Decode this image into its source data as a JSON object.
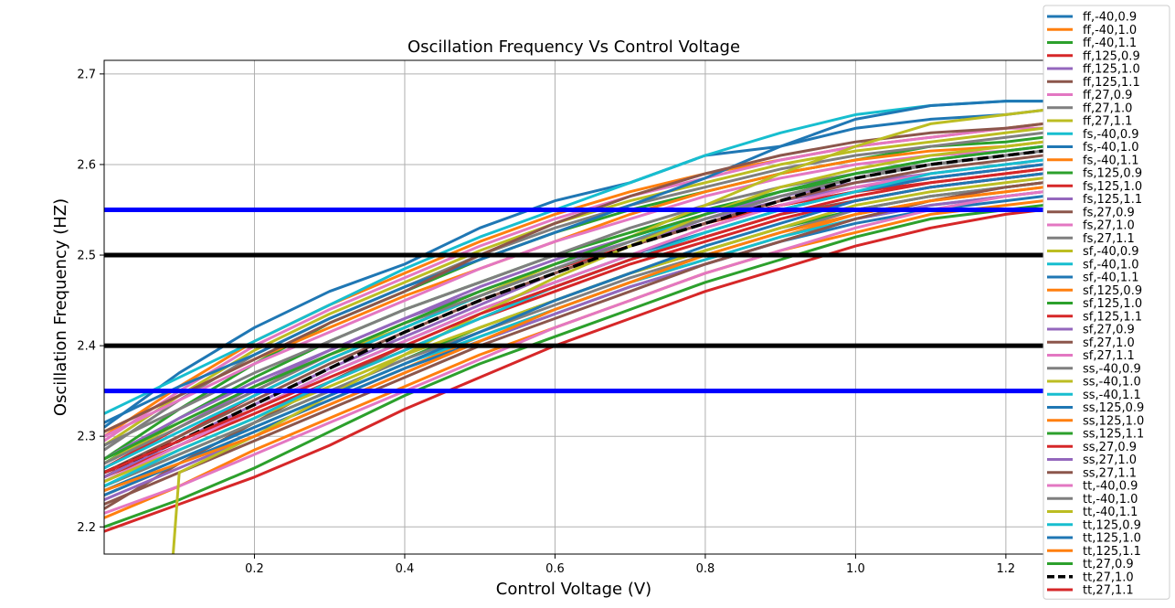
{
  "chart_data": {
    "type": "line",
    "title": "Oscillation Frequency Vs Control Voltage",
    "xlabel": "Control Voltage (V)",
    "ylabel": "Oscillation Frequency (HZ)",
    "xlim": [
      0.0,
      1.25
    ],
    "ylim": [
      2.17,
      2.715
    ],
    "xticks": [
      0.2,
      0.4,
      0.6,
      0.8,
      1.0,
      1.2
    ],
    "xtick_labels": [
      "0.2",
      "0.4",
      "0.6",
      "0.8",
      "1.0",
      "1.2"
    ],
    "yticks": [
      2.2,
      2.3,
      2.4,
      2.5,
      2.6,
      2.7
    ],
    "ytick_labels": [
      "2.2",
      "2.3",
      "2.4",
      "2.5",
      "2.6",
      "2.7"
    ],
    "grid": true,
    "legend_position": "outside-right",
    "x": [
      0.0,
      0.1,
      0.2,
      0.3,
      0.4,
      0.5,
      0.6,
      0.7,
      0.8,
      0.9,
      1.0,
      1.1,
      1.2,
      1.25
    ],
    "hlines": [
      {
        "y": 2.55,
        "color": "#0000ff"
      },
      {
        "y": 2.5,
        "color": "#000000"
      },
      {
        "y": 2.4,
        "color": "#000000"
      },
      {
        "y": 2.35,
        "color": "#0000ff"
      }
    ],
    "series": [
      {
        "name": "ff,-40,0.9",
        "color": "#1f77b4",
        "values": [
          2.31,
          2.37,
          2.42,
          2.46,
          2.49,
          2.53,
          2.56,
          2.58,
          2.61,
          2.62,
          2.64,
          2.65,
          2.655,
          2.66
        ]
      },
      {
        "name": "ff,-40,1.0",
        "color": "#ff7f0e",
        "values": [
          2.3,
          2.355,
          2.405,
          2.445,
          2.48,
          2.515,
          2.545,
          2.57,
          2.59,
          2.605,
          2.62,
          2.63,
          2.64,
          2.645
        ]
      },
      {
        "name": "ff,-40,1.1",
        "color": "#2ca02c",
        "values": [
          2.275,
          2.33,
          2.38,
          2.425,
          2.46,
          2.495,
          2.525,
          2.55,
          2.57,
          2.59,
          2.605,
          2.62,
          2.625,
          2.63
        ]
      },
      {
        "name": "ff,125,0.9",
        "color": "#d62728",
        "values": [
          2.255,
          2.3,
          2.345,
          2.385,
          2.42,
          2.455,
          2.485,
          2.51,
          2.535,
          2.555,
          2.57,
          2.585,
          2.595,
          2.6
        ]
      },
      {
        "name": "ff,125,1.0",
        "color": "#9467bd",
        "values": [
          2.265,
          2.31,
          2.355,
          2.395,
          2.43,
          2.465,
          2.495,
          2.52,
          2.545,
          2.565,
          2.58,
          2.59,
          2.6,
          2.605
        ]
      },
      {
        "name": "ff,125,1.1",
        "color": "#8c564b",
        "values": [
          2.22,
          2.27,
          2.315,
          2.36,
          2.4,
          2.435,
          2.465,
          2.495,
          2.52,
          2.545,
          2.56,
          2.575,
          2.585,
          2.59
        ]
      },
      {
        "name": "ff,27,0.9",
        "color": "#e377c2",
        "values": [
          2.295,
          2.35,
          2.4,
          2.44,
          2.475,
          2.51,
          2.54,
          2.565,
          2.585,
          2.605,
          2.62,
          2.63,
          2.64,
          2.64
        ]
      },
      {
        "name": "ff,27,1.0",
        "color": "#7f7f7f",
        "values": [
          2.285,
          2.34,
          2.39,
          2.43,
          2.465,
          2.5,
          2.53,
          2.555,
          2.575,
          2.595,
          2.61,
          2.62,
          2.63,
          2.635
        ]
      },
      {
        "name": "ff,27,1.1",
        "color": "#bcbd22",
        "values": [
          2.29,
          2.345,
          2.395,
          2.435,
          2.47,
          2.505,
          2.535,
          2.56,
          2.58,
          2.6,
          2.615,
          2.625,
          2.635,
          2.64
        ]
      },
      {
        "name": "fs,-40,0.9",
        "color": "#17becf",
        "values": [
          2.325,
          2.365,
          2.405,
          2.445,
          2.485,
          2.52,
          2.55,
          2.58,
          2.61,
          2.635,
          2.655,
          2.665,
          2.67,
          2.67
        ]
      },
      {
        "name": "fs,-40,1.0",
        "color": "#1f77b4",
        "values": [
          2.315,
          2.355,
          2.39,
          2.43,
          2.465,
          2.495,
          2.525,
          2.555,
          2.585,
          2.62,
          2.65,
          2.665,
          2.67,
          2.67
        ]
      },
      {
        "name": "fs,-40,1.1",
        "color": "#ff7f0e",
        "values": [
          2.305,
          2.345,
          2.385,
          2.42,
          2.455,
          2.485,
          2.515,
          2.545,
          2.57,
          2.59,
          2.605,
          2.615,
          2.62,
          2.625
        ]
      },
      {
        "name": "fs,125,0.9",
        "color": "#2ca02c",
        "values": [
          2.27,
          2.32,
          2.365,
          2.405,
          2.44,
          2.47,
          2.5,
          2.525,
          2.55,
          2.57,
          2.585,
          2.6,
          2.61,
          2.615
        ]
      },
      {
        "name": "fs,125,1.0",
        "color": "#d62728",
        "values": [
          2.265,
          2.31,
          2.35,
          2.39,
          2.425,
          2.455,
          2.485,
          2.51,
          2.535,
          2.555,
          2.57,
          2.58,
          2.59,
          2.595
        ]
      },
      {
        "name": "fs,125,1.1",
        "color": "#9467bd",
        "values": [
          2.275,
          2.32,
          2.36,
          2.395,
          2.43,
          2.46,
          2.49,
          2.515,
          2.54,
          2.56,
          2.575,
          2.585,
          2.595,
          2.6
        ]
      },
      {
        "name": "fs,27,0.9",
        "color": "#8c564b",
        "values": [
          2.305,
          2.345,
          2.385,
          2.425,
          2.46,
          2.5,
          2.535,
          2.565,
          2.59,
          2.61,
          2.625,
          2.635,
          2.64,
          2.645
        ]
      },
      {
        "name": "fs,27,1.0",
        "color": "#e377c2",
        "values": [
          2.3,
          2.34,
          2.38,
          2.415,
          2.45,
          2.485,
          2.515,
          2.54,
          2.565,
          2.585,
          2.6,
          2.61,
          2.615,
          2.62
        ]
      },
      {
        "name": "fs,27,1.1",
        "color": "#7f7f7f",
        "values": [
          2.29,
          2.33,
          2.37,
          2.405,
          2.44,
          2.47,
          2.5,
          2.53,
          2.555,
          2.575,
          2.59,
          2.6,
          2.61,
          2.615
        ]
      },
      {
        "name": "sf,-40,0.9",
        "color": "#bcbd22",
        "values": [
          2.27,
          2.315,
          2.355,
          2.39,
          2.42,
          2.455,
          2.49,
          2.52,
          2.555,
          2.59,
          2.62,
          2.645,
          2.655,
          2.66
        ]
      },
      {
        "name": "sf,-40,1.0",
        "color": "#17becf",
        "values": [
          2.265,
          2.305,
          2.345,
          2.385,
          2.42,
          2.455,
          2.485,
          2.515,
          2.545,
          2.57,
          2.59,
          2.605,
          2.615,
          2.62
        ]
      },
      {
        "name": "sf,-40,1.1",
        "color": "#1f77b4",
        "values": [
          2.25,
          2.29,
          2.33,
          2.37,
          2.405,
          2.44,
          2.47,
          2.5,
          2.525,
          2.55,
          2.57,
          2.585,
          2.595,
          2.6
        ]
      },
      {
        "name": "sf,125,0.9",
        "color": "#ff7f0e",
        "values": [
          2.235,
          2.27,
          2.305,
          2.34,
          2.375,
          2.41,
          2.44,
          2.47,
          2.495,
          2.52,
          2.545,
          2.56,
          2.57,
          2.575
        ]
      },
      {
        "name": "sf,125,1.0",
        "color": "#2ca02c",
        "values": [
          2.245,
          2.28,
          2.315,
          2.35,
          2.385,
          2.42,
          2.45,
          2.48,
          2.505,
          2.53,
          2.55,
          2.565,
          2.575,
          2.58
        ]
      },
      {
        "name": "sf,125,1.1",
        "color": "#d62728",
        "values": [
          2.255,
          2.29,
          2.325,
          2.36,
          2.395,
          2.43,
          2.46,
          2.49,
          2.515,
          2.54,
          2.56,
          2.575,
          2.585,
          2.59
        ]
      },
      {
        "name": "sf,27,0.9",
        "color": "#9467bd",
        "values": [
          2.255,
          2.295,
          2.335,
          2.375,
          2.41,
          2.445,
          2.48,
          2.51,
          2.54,
          2.565,
          2.585,
          2.6,
          2.61,
          2.615
        ]
      },
      {
        "name": "sf,27,1.0",
        "color": "#8c564b",
        "values": [
          2.26,
          2.3,
          2.34,
          2.38,
          2.415,
          2.45,
          2.48,
          2.51,
          2.535,
          2.56,
          2.58,
          2.595,
          2.605,
          2.61
        ]
      },
      {
        "name": "sf,27,1.1",
        "color": "#e377c2",
        "values": [
          2.25,
          2.29,
          2.33,
          2.37,
          2.405,
          2.44,
          2.47,
          2.5,
          2.53,
          2.555,
          2.575,
          2.59,
          2.6,
          2.605
        ]
      },
      {
        "name": "ss,-40,0.9",
        "color": "#7f7f7f",
        "values": [
          2.245,
          2.28,
          2.315,
          2.35,
          2.385,
          2.415,
          2.445,
          2.475,
          2.5,
          2.525,
          2.55,
          2.565,
          2.575,
          2.58
        ]
      },
      {
        "name": "ss,-40,1.0",
        "color": "#bcbd22",
        "values": [
          2.25,
          2.285,
          2.32,
          2.355,
          2.39,
          2.42,
          2.45,
          2.48,
          2.505,
          2.53,
          2.555,
          2.57,
          2.58,
          2.585
        ]
      },
      {
        "name": "ss,-40,1.1",
        "color": "#17becf",
        "values": [
          2.24,
          2.275,
          2.31,
          2.345,
          2.38,
          2.41,
          2.44,
          2.47,
          2.495,
          2.52,
          2.54,
          2.555,
          2.565,
          2.57
        ]
      },
      {
        "name": "ss,125,0.9",
        "color": "#1f77b4",
        "values": [
          2.235,
          2.27,
          2.305,
          2.34,
          2.375,
          2.405,
          2.435,
          2.465,
          2.49,
          2.515,
          2.535,
          2.55,
          2.56,
          2.565
        ]
      },
      {
        "name": "ss,125,1.0",
        "color": "#ff7f0e",
        "values": [
          2.21,
          2.245,
          2.285,
          2.32,
          2.355,
          2.39,
          2.42,
          2.45,
          2.48,
          2.505,
          2.525,
          2.545,
          2.555,
          2.56
        ]
      },
      {
        "name": "ss,125,1.1",
        "color": "#2ca02c",
        "values": [
          2.2,
          2.23,
          2.265,
          2.305,
          2.345,
          2.38,
          2.41,
          2.44,
          2.47,
          2.495,
          2.52,
          2.54,
          2.55,
          2.555
        ]
      },
      {
        "name": "ss,27,0.9",
        "color": "#d62728",
        "values": [
          2.195,
          2.225,
          2.255,
          2.29,
          2.33,
          2.365,
          2.4,
          2.43,
          2.46,
          2.485,
          2.51,
          2.53,
          2.545,
          2.55
        ]
      },
      {
        "name": "ss,27,1.0",
        "color": "#9467bd",
        "values": [
          2.23,
          2.265,
          2.3,
          2.335,
          2.37,
          2.405,
          2.435,
          2.465,
          2.49,
          2.515,
          2.54,
          2.555,
          2.565,
          2.57
        ]
      },
      {
        "name": "ss,27,1.1",
        "color": "#8c564b",
        "values": [
          2.225,
          2.26,
          2.295,
          2.33,
          2.365,
          2.4,
          2.43,
          2.46,
          2.49,
          2.515,
          2.54,
          2.56,
          2.575,
          2.58
        ]
      },
      {
        "name": "tt,-40,0.9",
        "color": "#e377c2",
        "values": [
          2.215,
          2.245,
          2.28,
          2.315,
          2.35,
          2.385,
          2.42,
          2.45,
          2.48,
          2.505,
          2.53,
          2.55,
          2.565,
          2.57
        ]
      },
      {
        "name": "tt,-40,1.0",
        "color": "#7f7f7f",
        "values": [
          2.27,
          2.31,
          2.35,
          2.39,
          2.425,
          2.455,
          2.485,
          2.515,
          2.54,
          2.565,
          2.585,
          2.6,
          2.61,
          2.615
        ]
      },
      {
        "name": "tt,-40,1.1",
        "color": "#bcbd22",
        "values": [
          null,
          2.26,
          2.3,
          2.345,
          2.39,
          2.435,
          2.475,
          2.51,
          2.545,
          2.575,
          2.595,
          2.61,
          2.62,
          2.625
        ]
      },
      {
        "name": "tt,125,0.9",
        "color": "#17becf",
        "values": [
          2.245,
          2.285,
          2.32,
          2.36,
          2.395,
          2.43,
          2.465,
          2.495,
          2.525,
          2.55,
          2.57,
          2.59,
          2.6,
          2.605
        ]
      },
      {
        "name": "tt,125,1.0",
        "color": "#1f77b4",
        "values": [
          2.24,
          2.275,
          2.31,
          2.345,
          2.38,
          2.415,
          2.45,
          2.48,
          2.51,
          2.535,
          2.56,
          2.575,
          2.585,
          2.59
        ]
      },
      {
        "name": "tt,125,1.1",
        "color": "#ff7f0e",
        "values": [
          2.24,
          2.27,
          2.3,
          2.335,
          2.37,
          2.405,
          2.44,
          2.47,
          2.5,
          2.525,
          2.545,
          2.56,
          2.57,
          2.575
        ]
      },
      {
        "name": "tt,27,0.9",
        "color": "#2ca02c",
        "values": [
          2.275,
          2.315,
          2.355,
          2.39,
          2.425,
          2.46,
          2.49,
          2.52,
          2.545,
          2.57,
          2.59,
          2.605,
          2.615,
          2.62
        ]
      },
      {
        "name": "tt,27,1.0",
        "color": "#000000",
        "dashed": true,
        "values": [
          2.26,
          2.295,
          2.335,
          2.375,
          2.415,
          2.45,
          2.48,
          2.51,
          2.535,
          2.56,
          2.585,
          2.6,
          2.61,
          2.615
        ]
      },
      {
        "name": "tt,27,1.1",
        "color": "#d62728",
        "values": [
          2.26,
          2.295,
          2.33,
          2.365,
          2.4,
          2.435,
          2.465,
          2.495,
          2.52,
          2.545,
          2.565,
          2.58,
          2.59,
          2.595
        ]
      }
    ]
  }
}
